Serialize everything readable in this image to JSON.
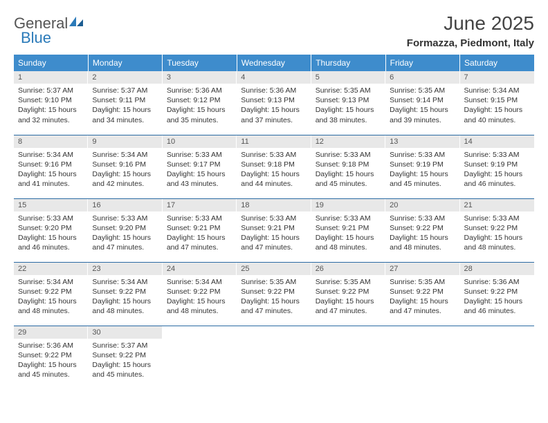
{
  "brand": {
    "part1": "General",
    "part2": "Blue"
  },
  "title": "June 2025",
  "location": "Formazza, Piedmont, Italy",
  "colors": {
    "header_bg": "#3e8ccc",
    "header_text": "#ffffff",
    "daynum_bg": "#e8e8e8",
    "row_border": "#2a6aa3",
    "logo_accent": "#2a7ab9"
  },
  "day_labels": [
    "Sunday",
    "Monday",
    "Tuesday",
    "Wednesday",
    "Thursday",
    "Friday",
    "Saturday"
  ],
  "weeks": [
    [
      {
        "n": "1",
        "sunrise": "Sunrise: 5:37 AM",
        "sunset": "Sunset: 9:10 PM",
        "daylight": "Daylight: 15 hours and 32 minutes."
      },
      {
        "n": "2",
        "sunrise": "Sunrise: 5:37 AM",
        "sunset": "Sunset: 9:11 PM",
        "daylight": "Daylight: 15 hours and 34 minutes."
      },
      {
        "n": "3",
        "sunrise": "Sunrise: 5:36 AM",
        "sunset": "Sunset: 9:12 PM",
        "daylight": "Daylight: 15 hours and 35 minutes."
      },
      {
        "n": "4",
        "sunrise": "Sunrise: 5:36 AM",
        "sunset": "Sunset: 9:13 PM",
        "daylight": "Daylight: 15 hours and 37 minutes."
      },
      {
        "n": "5",
        "sunrise": "Sunrise: 5:35 AM",
        "sunset": "Sunset: 9:13 PM",
        "daylight": "Daylight: 15 hours and 38 minutes."
      },
      {
        "n": "6",
        "sunrise": "Sunrise: 5:35 AM",
        "sunset": "Sunset: 9:14 PM",
        "daylight": "Daylight: 15 hours and 39 minutes."
      },
      {
        "n": "7",
        "sunrise": "Sunrise: 5:34 AM",
        "sunset": "Sunset: 9:15 PM",
        "daylight": "Daylight: 15 hours and 40 minutes."
      }
    ],
    [
      {
        "n": "8",
        "sunrise": "Sunrise: 5:34 AM",
        "sunset": "Sunset: 9:16 PM",
        "daylight": "Daylight: 15 hours and 41 minutes."
      },
      {
        "n": "9",
        "sunrise": "Sunrise: 5:34 AM",
        "sunset": "Sunset: 9:16 PM",
        "daylight": "Daylight: 15 hours and 42 minutes."
      },
      {
        "n": "10",
        "sunrise": "Sunrise: 5:33 AM",
        "sunset": "Sunset: 9:17 PM",
        "daylight": "Daylight: 15 hours and 43 minutes."
      },
      {
        "n": "11",
        "sunrise": "Sunrise: 5:33 AM",
        "sunset": "Sunset: 9:18 PM",
        "daylight": "Daylight: 15 hours and 44 minutes."
      },
      {
        "n": "12",
        "sunrise": "Sunrise: 5:33 AM",
        "sunset": "Sunset: 9:18 PM",
        "daylight": "Daylight: 15 hours and 45 minutes."
      },
      {
        "n": "13",
        "sunrise": "Sunrise: 5:33 AM",
        "sunset": "Sunset: 9:19 PM",
        "daylight": "Daylight: 15 hours and 45 minutes."
      },
      {
        "n": "14",
        "sunrise": "Sunrise: 5:33 AM",
        "sunset": "Sunset: 9:19 PM",
        "daylight": "Daylight: 15 hours and 46 minutes."
      }
    ],
    [
      {
        "n": "15",
        "sunrise": "Sunrise: 5:33 AM",
        "sunset": "Sunset: 9:20 PM",
        "daylight": "Daylight: 15 hours and 46 minutes."
      },
      {
        "n": "16",
        "sunrise": "Sunrise: 5:33 AM",
        "sunset": "Sunset: 9:20 PM",
        "daylight": "Daylight: 15 hours and 47 minutes."
      },
      {
        "n": "17",
        "sunrise": "Sunrise: 5:33 AM",
        "sunset": "Sunset: 9:21 PM",
        "daylight": "Daylight: 15 hours and 47 minutes."
      },
      {
        "n": "18",
        "sunrise": "Sunrise: 5:33 AM",
        "sunset": "Sunset: 9:21 PM",
        "daylight": "Daylight: 15 hours and 47 minutes."
      },
      {
        "n": "19",
        "sunrise": "Sunrise: 5:33 AM",
        "sunset": "Sunset: 9:21 PM",
        "daylight": "Daylight: 15 hours and 48 minutes."
      },
      {
        "n": "20",
        "sunrise": "Sunrise: 5:33 AM",
        "sunset": "Sunset: 9:22 PM",
        "daylight": "Daylight: 15 hours and 48 minutes."
      },
      {
        "n": "21",
        "sunrise": "Sunrise: 5:33 AM",
        "sunset": "Sunset: 9:22 PM",
        "daylight": "Daylight: 15 hours and 48 minutes."
      }
    ],
    [
      {
        "n": "22",
        "sunrise": "Sunrise: 5:34 AM",
        "sunset": "Sunset: 9:22 PM",
        "daylight": "Daylight: 15 hours and 48 minutes."
      },
      {
        "n": "23",
        "sunrise": "Sunrise: 5:34 AM",
        "sunset": "Sunset: 9:22 PM",
        "daylight": "Daylight: 15 hours and 48 minutes."
      },
      {
        "n": "24",
        "sunrise": "Sunrise: 5:34 AM",
        "sunset": "Sunset: 9:22 PM",
        "daylight": "Daylight: 15 hours and 48 minutes."
      },
      {
        "n": "25",
        "sunrise": "Sunrise: 5:35 AM",
        "sunset": "Sunset: 9:22 PM",
        "daylight": "Daylight: 15 hours and 47 minutes."
      },
      {
        "n": "26",
        "sunrise": "Sunrise: 5:35 AM",
        "sunset": "Sunset: 9:22 PM",
        "daylight": "Daylight: 15 hours and 47 minutes."
      },
      {
        "n": "27",
        "sunrise": "Sunrise: 5:35 AM",
        "sunset": "Sunset: 9:22 PM",
        "daylight": "Daylight: 15 hours and 47 minutes."
      },
      {
        "n": "28",
        "sunrise": "Sunrise: 5:36 AM",
        "sunset": "Sunset: 9:22 PM",
        "daylight": "Daylight: 15 hours and 46 minutes."
      }
    ],
    [
      {
        "n": "29",
        "sunrise": "Sunrise: 5:36 AM",
        "sunset": "Sunset: 9:22 PM",
        "daylight": "Daylight: 15 hours and 45 minutes."
      },
      {
        "n": "30",
        "sunrise": "Sunrise: 5:37 AM",
        "sunset": "Sunset: 9:22 PM",
        "daylight": "Daylight: 15 hours and 45 minutes."
      },
      null,
      null,
      null,
      null,
      null
    ]
  ]
}
